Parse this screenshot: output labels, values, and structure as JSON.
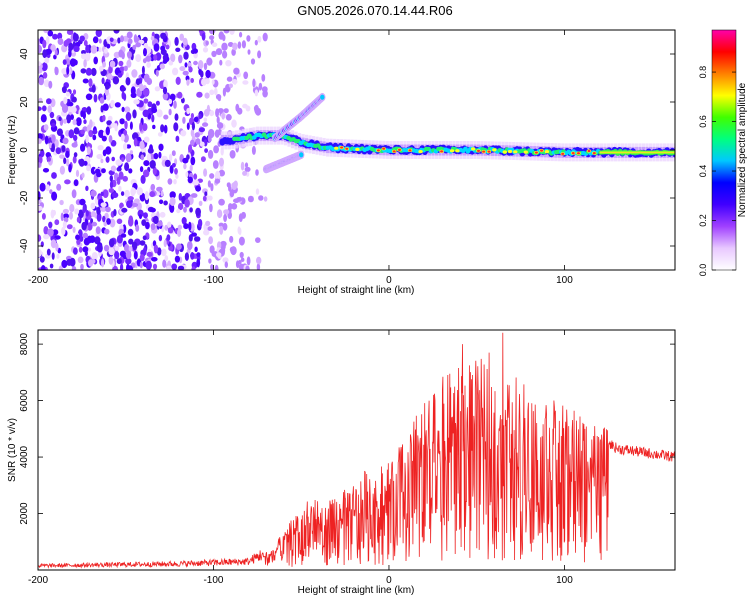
{
  "title": "GN05.2026.070.14.44.R06",
  "chart_data": [
    {
      "type": "heatmap",
      "name": "spectrogram",
      "xlabel": "Height of straight line (km)",
      "ylabel": "Frequency (Hz)",
      "xlim": [
        -200,
        163
      ],
      "ylim": [
        -50,
        50
      ],
      "xticks": [
        -200,
        -100,
        0,
        100
      ],
      "yticks": [
        -40,
        -20,
        0,
        20,
        40
      ],
      "xtick_labels": [
        "-200",
        "-100",
        "0",
        "100"
      ],
      "ytick_labels": [
        "-40",
        "-20",
        "0",
        "20",
        "40"
      ],
      "colorbar": {
        "label": "Normalized spectral amplitude",
        "range": [
          0,
          0.97
        ],
        "ticks": [
          0,
          0.2,
          0.4,
          0.6,
          0.8
        ],
        "tick_labels": [
          "0.0",
          "0.2",
          "0.4",
          "0.6",
          "0.8"
        ],
        "colors": [
          "#ffffff",
          "#e8c8ff",
          "#a040ff",
          "#4000ff",
          "#0000ff",
          "#00c8ff",
          "#00ff80",
          "#40ff00",
          "#ffff00",
          "#ff8000",
          "#ff0000",
          "#ff00aa"
        ]
      },
      "features": {
        "noise_region_x": [
          -200,
          -70
        ],
        "carrier_track": [
          {
            "x": -90,
            "y": 4
          },
          {
            "x": -75,
            "y": 6
          },
          {
            "x": -60,
            "y": 6
          },
          {
            "x": -50,
            "y": 3
          },
          {
            "x": -35,
            "y": 1
          },
          {
            "x": 0,
            "y": 0
          },
          {
            "x": 50,
            "y": 0
          },
          {
            "x": 100,
            "y": -1
          },
          {
            "x": 163,
            "y": -1
          }
        ],
        "branch_up": [
          {
            "x": -65,
            "y": 5
          },
          {
            "x": -50,
            "y": 14
          },
          {
            "x": -38,
            "y": 22
          }
        ],
        "branch_down": [
          {
            "x": -70,
            "y": -8
          },
          {
            "x": -60,
            "y": -5
          },
          {
            "x": -50,
            "y": -2
          }
        ]
      }
    },
    {
      "type": "line",
      "name": "snr",
      "xlabel": "Height of straight line (km)",
      "ylabel": "SNR (10 * v/v)",
      "xlim": [
        -200,
        163
      ],
      "ylim": [
        0,
        8500
      ],
      "xticks": [
        -200,
        -100,
        0,
        100
      ],
      "yticks": [
        2000,
        4000,
        6000,
        8000
      ],
      "xtick_labels": [
        "-200",
        "-100",
        "0",
        "100"
      ],
      "ytick_labels": [
        "2000",
        "4000",
        "6000",
        "8000"
      ],
      "color": "#ee2222",
      "envelope": [
        {
          "x": -200,
          "y": 150
        },
        {
          "x": -120,
          "y": 220
        },
        {
          "x": -80,
          "y": 300
        },
        {
          "x": -65,
          "y": 800
        },
        {
          "x": -55,
          "y": 1800
        },
        {
          "x": -45,
          "y": 2300
        },
        {
          "x": -35,
          "y": 2200
        },
        {
          "x": -25,
          "y": 2600
        },
        {
          "x": -15,
          "y": 3200
        },
        {
          "x": 0,
          "y": 3500
        },
        {
          "x": 15,
          "y": 5000
        },
        {
          "x": 30,
          "y": 6200
        },
        {
          "x": 45,
          "y": 6800
        },
        {
          "x": 60,
          "y": 6800
        },
        {
          "x": 75,
          "y": 6300
        },
        {
          "x": 90,
          "y": 5600
        },
        {
          "x": 105,
          "y": 5200
        },
        {
          "x": 118,
          "y": 4800
        },
        {
          "x": 130,
          "y": 4300
        },
        {
          "x": 163,
          "y": 4000
        }
      ],
      "peaks": [
        {
          "x": 65,
          "y": 8400
        },
        {
          "x": 42,
          "y": 8000
        },
        {
          "x": 57,
          "y": 7700
        }
      ]
    }
  ]
}
